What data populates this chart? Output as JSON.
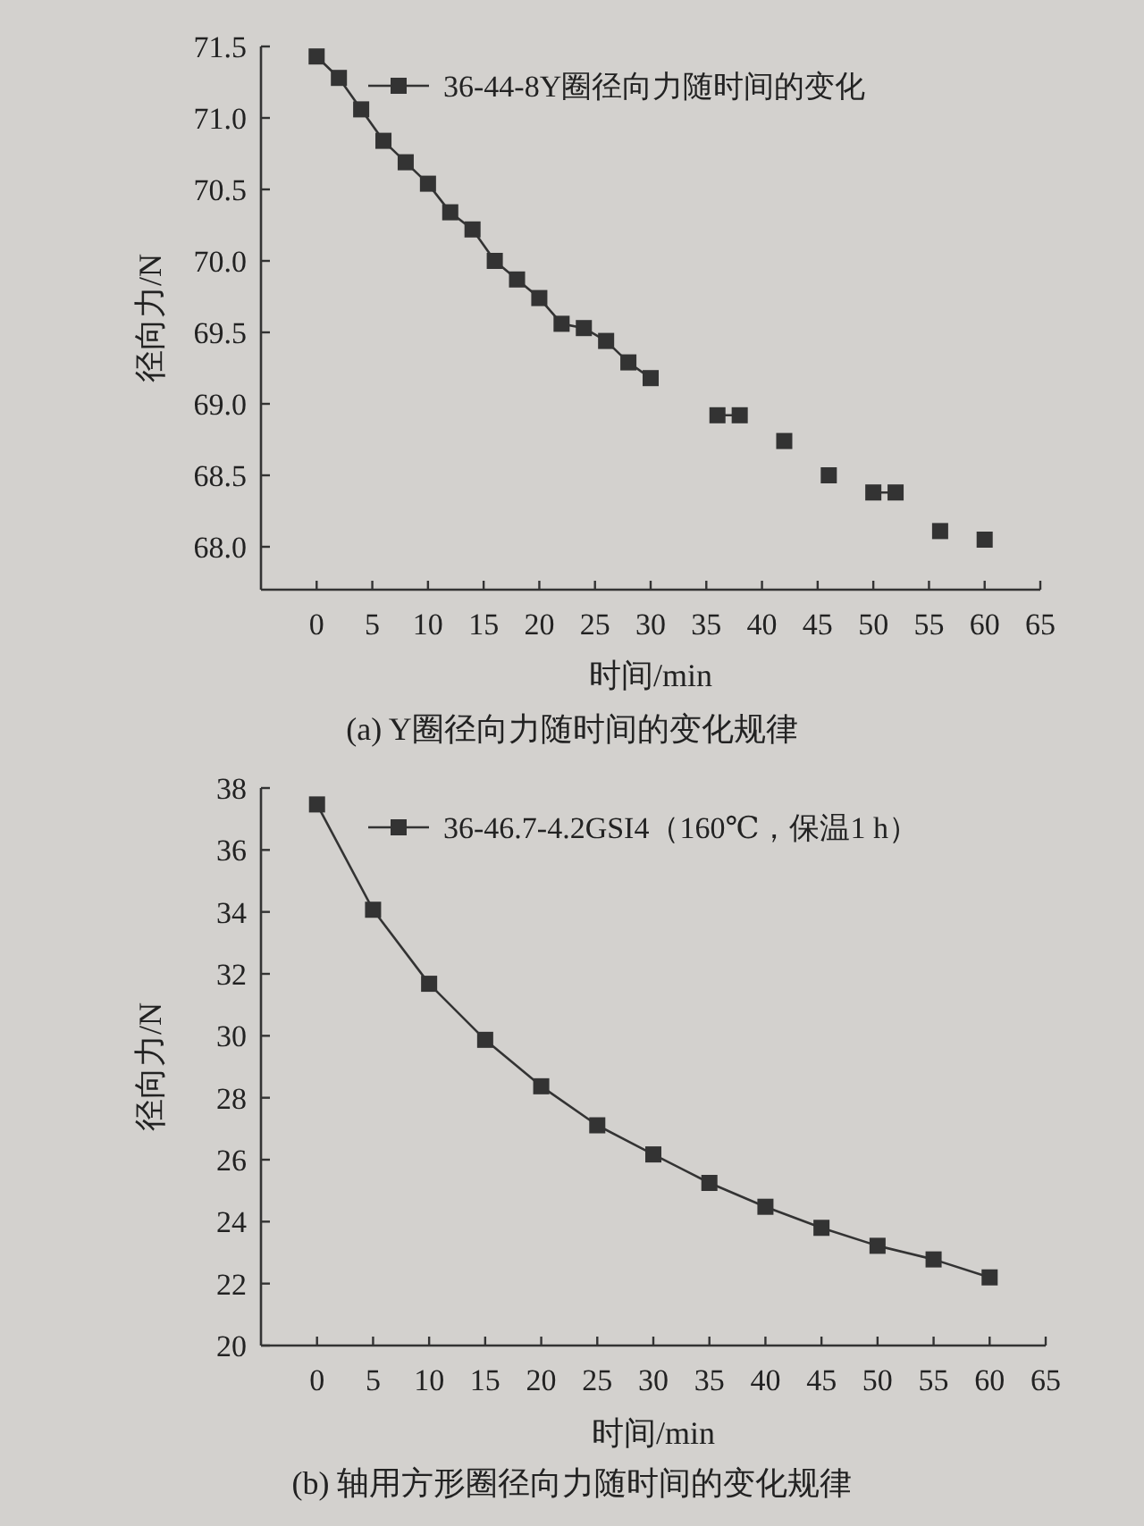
{
  "chart_data": [
    {
      "type": "line",
      "title": "(a)  Y圈径向力随时间的变化规律",
      "xlabel": "时间/min",
      "ylabel": "径向力/N",
      "x": [
        0,
        2,
        4,
        6,
        8,
        10,
        12,
        14,
        16,
        18,
        20,
        22,
        24,
        26,
        28,
        30,
        32,
        34,
        36,
        38,
        40,
        42,
        44,
        46,
        48,
        50,
        52,
        54,
        56,
        58,
        60
      ],
      "series": [
        {
          "name": "36-44-8Y圈径向力随时间的变化",
          "color": "#333333",
          "values": [
            71.43,
            71.28,
            71.06,
            70.84,
            70.69,
            70.54,
            70.34,
            70.22,
            70.0,
            69.87,
            69.74,
            69.56,
            69.53,
            69.44,
            69.29,
            69.18,
            null,
            null,
            68.92,
            68.92,
            null,
            68.74,
            null,
            68.5,
            null,
            68.38,
            68.38,
            null,
            68.11,
            null,
            68.05
          ]
        }
      ],
      "xlim": [
        -5,
        65
      ],
      "ylim": [
        67.7,
        71.5
      ],
      "xticks": [
        0,
        5,
        10,
        15,
        20,
        25,
        30,
        35,
        40,
        45,
        50,
        55,
        60,
        65
      ],
      "yticks": [
        {
          "value": 68,
          "label": "68.0"
        },
        68.5,
        {
          "value": 69,
          "label": "69.0"
        },
        69.5,
        {
          "value": 70,
          "label": "70.0"
        },
        70.5,
        {
          "value": 71,
          "label": "71.0"
        },
        71.5
      ],
      "grid": false,
      "legend": "top",
      "marker": "square",
      "line_style": "solid"
    },
    {
      "type": "line",
      "title": "(b)  轴用方形圈径向力随时间的变化规律",
      "xlabel": "时间/min",
      "ylabel": "径向力/N",
      "x": [
        0,
        5,
        10,
        15,
        20,
        25,
        30,
        35,
        40,
        45,
        50,
        55,
        60
      ],
      "series": [
        {
          "name": "36-46.7-4.2GSI4（160℃，保温1 h）",
          "color": "#333333",
          "values": [
            37.47,
            34.07,
            31.68,
            29.87,
            28.37,
            27.11,
            26.17,
            25.25,
            24.48,
            23.8,
            23.22,
            22.78,
            22.2
          ]
        }
      ],
      "xlim": [
        -5,
        65
      ],
      "ylim": [
        20,
        38
      ],
      "xticks": [
        0,
        5,
        10,
        15,
        20,
        25,
        30,
        35,
        40,
        45,
        50,
        55,
        60,
        65
      ],
      "yticks": [
        20,
        22,
        24,
        26,
        28,
        30,
        32,
        34,
        36,
        38
      ],
      "grid": false,
      "legend": "top",
      "marker": "square",
      "line_style": "solid"
    }
  ]
}
